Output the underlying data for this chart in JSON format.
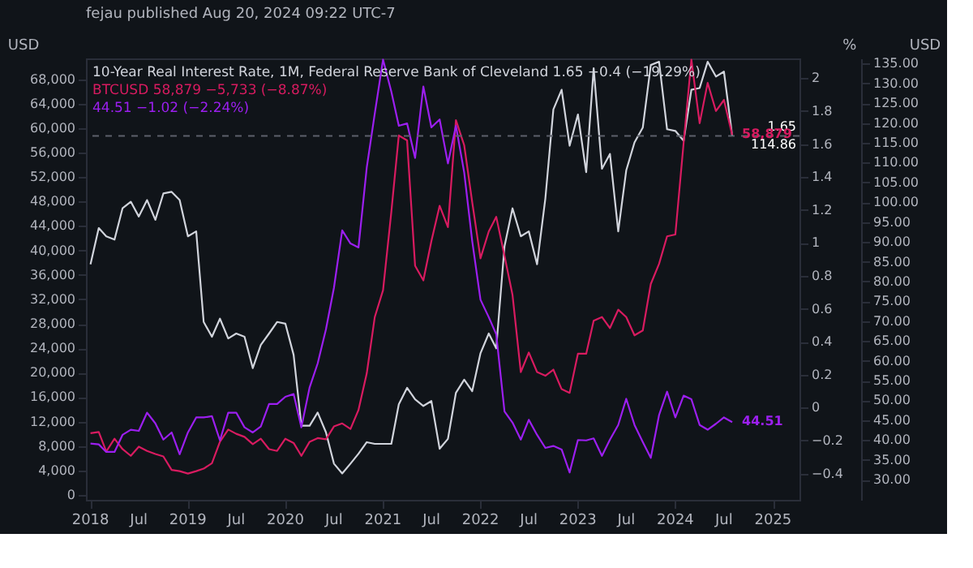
{
  "chart_data": {
    "type": "line",
    "title": "fejau published Aug 20, 2024 09:22 UTC-7",
    "x": [
      "2018-01",
      "2018-02",
      "2018-03",
      "2018-04",
      "2018-05",
      "2018-06",
      "2018-07",
      "2018-08",
      "2018-09",
      "2018-10",
      "2018-11",
      "2018-12",
      "2019-01",
      "2019-02",
      "2019-03",
      "2019-04",
      "2019-05",
      "2019-06",
      "2019-07",
      "2019-08",
      "2019-09",
      "2019-10",
      "2019-11",
      "2019-12",
      "2020-01",
      "2020-02",
      "2020-03",
      "2020-04",
      "2020-05",
      "2020-06",
      "2020-07",
      "2020-08",
      "2020-09",
      "2020-10",
      "2020-11",
      "2020-12",
      "2021-01",
      "2021-02",
      "2021-03",
      "2021-04",
      "2021-05",
      "2021-06",
      "2021-07",
      "2021-08",
      "2021-09",
      "2021-10",
      "2021-11",
      "2021-12",
      "2022-01",
      "2022-02",
      "2022-03",
      "2022-04",
      "2022-05",
      "2022-06",
      "2022-07",
      "2022-08",
      "2022-09",
      "2022-10",
      "2022-11",
      "2022-12",
      "2023-01",
      "2023-02",
      "2023-03",
      "2023-04",
      "2023-05",
      "2023-06",
      "2023-07",
      "2023-08",
      "2023-09",
      "2023-10",
      "2023-11",
      "2023-12",
      "2024-01",
      "2024-02",
      "2024-03",
      "2024-04",
      "2024-05",
      "2024-06",
      "2024-07",
      "2024-08"
    ],
    "series": [
      {
        "name": "10-Year Real Interest Rate, 1M, Federal Reserve Bank of Cleveland",
        "color": "#d1d4dc",
        "axis": "y2",
        "values": [
          0.87,
          1.09,
          1.04,
          1.02,
          1.21,
          1.25,
          1.16,
          1.26,
          1.14,
          1.3,
          1.31,
          1.26,
          1.04,
          1.07,
          0.52,
          0.43,
          0.54,
          0.42,
          0.45,
          0.43,
          0.24,
          0.38,
          0.45,
          0.52,
          0.51,
          0.32,
          -0.11,
          -0.11,
          -0.03,
          -0.15,
          -0.34,
          -0.4,
          -0.34,
          -0.28,
          -0.21,
          -0.22,
          -0.22,
          -0.22,
          0.02,
          0.12,
          0.05,
          0.01,
          0.04,
          -0.25,
          -0.19,
          0.09,
          0.17,
          0.1,
          0.33,
          0.45,
          0.36,
          0.98,
          1.21,
          1.04,
          1.07,
          0.87,
          1.27,
          1.81,
          1.93,
          1.59,
          1.78,
          1.43,
          2.06,
          1.45,
          1.54,
          1.07,
          1.44,
          1.61,
          1.7,
          2.08,
          2.1,
          1.69,
          1.68,
          1.62,
          1.93,
          1.94,
          2.1,
          2.01,
          2.04,
          1.65
        ]
      },
      {
        "name": "BTCUSD",
        "color": "#d81b60",
        "axis": "y",
        "values": [
          10100,
          10300,
          7100,
          9200,
          7500,
          6400,
          7900,
          7200,
          6700,
          6300,
          4100,
          3900,
          3500,
          3900,
          4300,
          5200,
          8700,
          10700,
          10000,
          9500,
          8300,
          9200,
          7500,
          7200,
          9200,
          8500,
          6400,
          8700,
          9300,
          9100,
          11200,
          11700,
          10800,
          13900,
          19900,
          29100,
          33500,
          46300,
          58800,
          58000,
          37500,
          35100,
          41500,
          47300,
          43800,
          61300,
          57200,
          47900,
          38700,
          43100,
          45500,
          39100,
          32700,
          20100,
          23300,
          20100,
          19500,
          20500,
          17300,
          16700,
          23100,
          23100,
          28500,
          29100,
          27300,
          30300,
          29100,
          26100,
          26900,
          34500,
          37800,
          42300,
          42600,
          57600,
          71200,
          60800,
          67400,
          62800,
          64600,
          58900
        ]
      },
      {
        "color": "#9c1ff0",
        "axis": "y3",
        "values": [
          39.1,
          38.9,
          37.0,
          37.0,
          41.3,
          42.6,
          42.3,
          46.9,
          44.2,
          40.1,
          41.9,
          36.4,
          41.9,
          45.7,
          45.7,
          46.0,
          39.9,
          46.9,
          46.9,
          43.2,
          41.9,
          43.4,
          49.1,
          49.1,
          50.9,
          51.6,
          43.2,
          53.3,
          59.3,
          67.9,
          78.4,
          92.9,
          89.6,
          88.6,
          108.8,
          122.4,
          136.0,
          127.9,
          119.3,
          119.9,
          111.2,
          129.2,
          118.9,
          120.9,
          109.8,
          119.3,
          107.5,
          90.2,
          75.4,
          71.0,
          66.7,
          47.2,
          44.4,
          40.1,
          45.1,
          41.3,
          38.0,
          38.5,
          37.6,
          31.8,
          40.0,
          39.9,
          40.4,
          36.0,
          40.1,
          43.8,
          50.4,
          43.8,
          39.5,
          35.5,
          46.3,
          52.2,
          45.7,
          51.2,
          50.3,
          43.8,
          42.6,
          44.1,
          45.7,
          44.5
        ]
      }
    ],
    "xlim": [
      "2017-12-15",
      "2025-04-10"
    ],
    "xticks": [
      {
        "value": "2018",
        "label": "2018"
      },
      {
        "value": "2018-07",
        "label": "Jul"
      },
      {
        "value": "2019",
        "label": "2019"
      },
      {
        "value": "2019-07",
        "label": "Jul"
      },
      {
        "value": "2020",
        "label": "2020"
      },
      {
        "value": "2020-07",
        "label": "Jul"
      },
      {
        "value": "2021",
        "label": "2021"
      },
      {
        "value": "2021-07",
        "label": "Jul"
      },
      {
        "value": "2022",
        "label": "2022"
      },
      {
        "value": "2022-07",
        "label": "Jul"
      },
      {
        "value": "2023",
        "label": "2023"
      },
      {
        "value": "2023-07",
        "label": "Jul"
      },
      {
        "value": "2024",
        "label": "2024"
      },
      {
        "value": "2024-07",
        "label": "Jul"
      },
      {
        "value": "2025",
        "label": "2025"
      }
    ],
    "ylabel": "USD",
    "ylim": [
      -800,
      71400
    ],
    "yticks": [
      0,
      {
        "value": 4000,
        "label": "4,000"
      },
      {
        "value": 8000,
        "label": "8,000"
      },
      {
        "value": 12000,
        "label": "12,000"
      },
      {
        "value": 16000,
        "label": "16,000"
      },
      {
        "value": 20000,
        "label": "20,000"
      },
      {
        "value": 24000,
        "label": "24,000"
      },
      {
        "value": 28000,
        "label": "28,000"
      },
      {
        "value": 32000,
        "label": "32,000"
      },
      {
        "value": 36000,
        "label": "36,000"
      },
      {
        "value": 40000,
        "label": "40,000"
      },
      {
        "value": 44000,
        "label": "44,000"
      },
      {
        "value": 48000,
        "label": "48,000"
      },
      {
        "value": 52000,
        "label": "52,000"
      },
      {
        "value": 56000,
        "label": "56,000"
      },
      {
        "value": 60000,
        "label": "60,000"
      },
      {
        "value": 64000,
        "label": "64,000"
      },
      {
        "value": 68000,
        "label": "68,000"
      }
    ],
    "y2label": "%",
    "y2lim": [
      -0.56,
      2.12
    ],
    "y2ticks": [
      {
        "value": -0.4,
        "label": "−0.4"
      },
      {
        "value": -0.2,
        "label": "−0.2"
      },
      0,
      0.2,
      0.4,
      0.6,
      0.8,
      1,
      1.2,
      1.4,
      1.6,
      1.8,
      2
    ],
    "y3label": "USD",
    "y3lim": [
      24.9,
      136.3
    ],
    "y3ticks": [
      {
        "value": 30,
        "label": "30.00"
      },
      {
        "value": 35,
        "label": "35.00"
      },
      {
        "value": 40,
        "label": "40.00"
      },
      {
        "value": 45,
        "label": "45.00"
      },
      {
        "value": 50,
        "label": "50.00"
      },
      {
        "value": 55,
        "label": "55.00"
      },
      {
        "value": 60,
        "label": "60.00"
      },
      {
        "value": 65,
        "label": "65.00"
      },
      {
        "value": 70,
        "label": "70.00"
      },
      {
        "value": 75,
        "label": "75.00"
      },
      {
        "value": 80,
        "label": "80.00"
      },
      {
        "value": 85,
        "label": "85.00"
      },
      {
        "value": 90,
        "label": "90.00"
      },
      {
        "value": 95,
        "label": "95.00"
      },
      {
        "value": 100,
        "label": "100.00"
      },
      {
        "value": 105,
        "label": "105.00"
      },
      {
        "value": 110,
        "label": "110.00"
      },
      {
        "value": 115,
        "label": "115.00"
      },
      {
        "value": 120,
        "label": "120.00"
      },
      {
        "value": 125,
        "label": "125.00"
      },
      {
        "value": 130,
        "label": "130.00"
      },
      {
        "value": 135,
        "label": "135.00"
      }
    ],
    "ref_lines": [
      {
        "axis": "y2",
        "value": 1.65,
        "label": "1.65",
        "color": "#5d606b",
        "line_style": "dashed"
      }
    ],
    "annotations": [
      "1.65 −0.4 (−19.29%)",
      "58,879 −5,733 (−8.87%)",
      "44.51 −1.02 (−2.24%)",
      "58,879",
      "44.51",
      "114.86"
    ],
    "grid": false
  }
}
